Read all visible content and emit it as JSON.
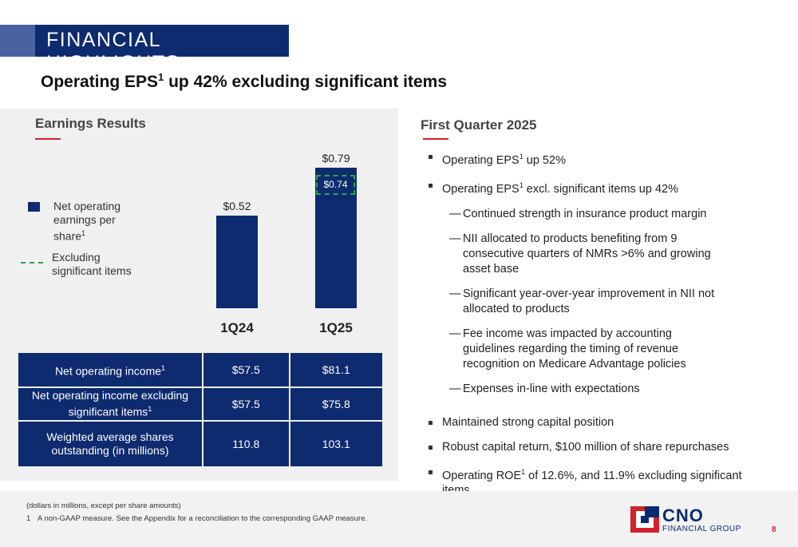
{
  "banner": {
    "title": "FINANCIAL HIGHLIGHTS"
  },
  "headline": {
    "pre": "Operating EPS",
    "sup": "1",
    "post": " up 42% excluding significant items"
  },
  "left": {
    "title": "Earnings Results",
    "legend": {
      "series1_line1": "Net operating",
      "series1_line2": "earnings per",
      "series1_line3": "share",
      "series1_sup": "1",
      "series2_line1": "Excluding",
      "series2_line2": "significant items"
    }
  },
  "chart_data": {
    "type": "bar",
    "categories": [
      "1Q24",
      "1Q25"
    ],
    "series": [
      {
        "name": "Net operating earnings per share",
        "values": [
          0.52,
          0.79
        ],
        "labels": [
          "$0.52",
          "$0.79"
        ]
      },
      {
        "name": "Excluding significant items",
        "values": [
          null,
          0.74
        ],
        "labels": [
          "",
          "$0.74"
        ]
      }
    ],
    "colors": {
      "bar": "#0e2b6f",
      "excluding": "#2ea44f"
    }
  },
  "table": {
    "rows": [
      {
        "label": "Net operating income",
        "sup": "1",
        "v1": "$57.5",
        "v2": "$81.1"
      },
      {
        "label_line1": "Net operating income excluding",
        "label_line2": "significant items",
        "sup": "1",
        "v1": "$57.5",
        "v2": "$75.8"
      },
      {
        "label_line1": "Weighted average shares",
        "label_line2": "outstanding (in millions)",
        "v1": "110.8",
        "v2": "103.1"
      }
    ]
  },
  "right": {
    "title": "First Quarter 2025",
    "b1_pre": "Operating EPS",
    "b1_sup": "1",
    "b1_post": " up 52%",
    "b2_pre": "Operating EPS",
    "b2_sup": "1",
    "b2_post": " excl. significant items up 42%",
    "s1": "Continued strength in insurance product margin",
    "s2a": "NII allocated to products benefiting from 9",
    "s2b": "consecutive quarters of NMRs >6% and growing",
    "s2c": "asset base",
    "s3a": "Significant year-over-year improvement in NII not",
    "s3b": "allocated to products",
    "s4a": "Fee income was impacted by accounting",
    "s4b": "guidelines regarding the timing of revenue",
    "s4c": "recognition on Medicare Advantage policies",
    "s5": "Expenses in-line with expectations",
    "b3": "Maintained strong capital position",
    "b4": "Robust capital return, $100 million of share repurchases",
    "b5_pre": "Operating ROE",
    "b5_sup": "1",
    "b5_post": " of 12.6%, and 11.9% excluding significant",
    "b5_line2": "items"
  },
  "footer": {
    "note1": "(dollars in millions, except per share amounts)",
    "note2_num": "1",
    "note2": "A non-GAAP measure. See the Appendix for a reconciliation to the corresponding GAAP measure.",
    "logo_name": "CNO",
    "logo_sub": "FINANCIAL GROUP",
    "page": "8"
  },
  "icons": {
    "dash": "—"
  }
}
